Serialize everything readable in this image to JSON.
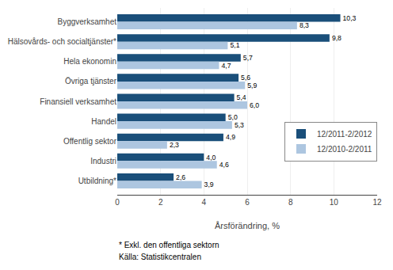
{
  "chart_data": {
    "type": "bar",
    "orientation": "horizontal",
    "categories": [
      "Utbildning*",
      "Industri",
      "Offentlig sektor",
      "Handel",
      "Finansiell verksamhet",
      "Övriga tjänster",
      "Hela ekonomin",
      "Hälsovårds- och socialtjänster*",
      "Byggverksamhet"
    ],
    "series": [
      {
        "name": "12/2011-2/2012",
        "color": "#1A4F7A",
        "values": [
          2.6,
          4.0,
          4.9,
          5.0,
          5.4,
          5.6,
          5.7,
          9.8,
          10.3
        ],
        "value_labels": [
          "2,6",
          "4,0",
          "4,9",
          "5,0",
          "5,4",
          "5,6",
          "5,7",
          "9,8",
          "10,3"
        ]
      },
      {
        "name": "12/2010-2/2011",
        "color": "#ADC6E0",
        "values": [
          3.9,
          4.6,
          2.3,
          5.3,
          6.0,
          5.9,
          4.7,
          5.1,
          8.3
        ],
        "value_labels": [
          "3,9",
          "4,6",
          "2,3",
          "5,3",
          "6,0",
          "5,9",
          "4,7",
          "5,1",
          "8,3"
        ]
      }
    ],
    "xlabel": "Årsförändring, %",
    "xlim": [
      0,
      12
    ],
    "xticks": [
      0,
      2,
      4,
      6,
      8,
      10,
      12
    ],
    "grid": true,
    "legend": "lower right",
    "data_labels": true,
    "annotations": [
      "* Exkl. den offentliga sektorn",
      "Källa: Statistikcentralen"
    ]
  }
}
